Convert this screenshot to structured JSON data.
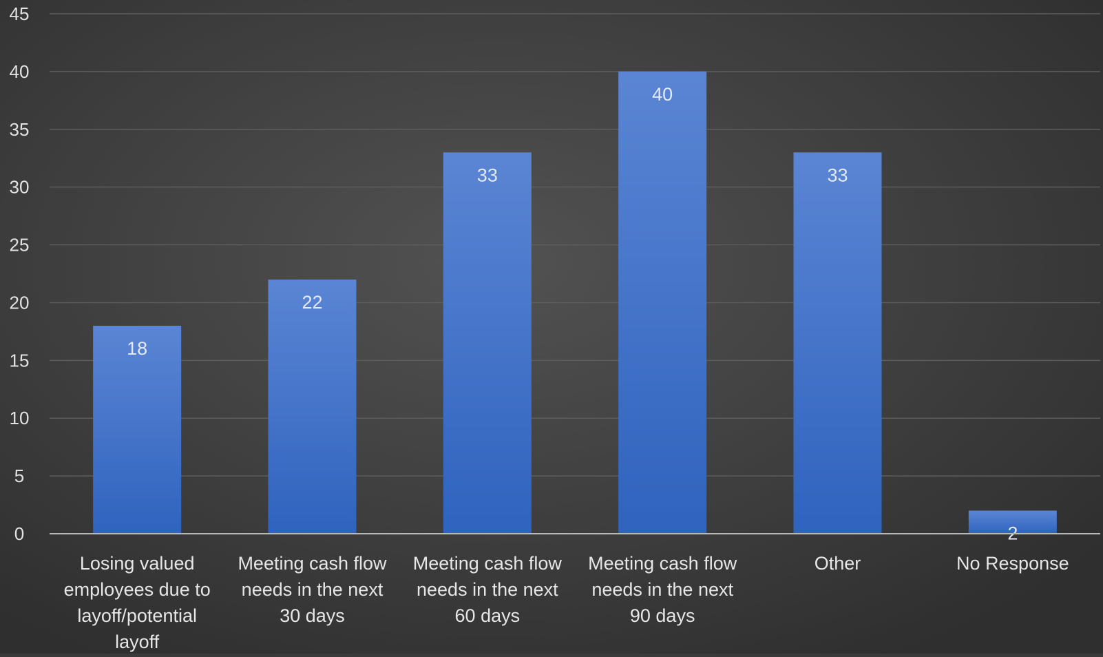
{
  "chart_data": {
    "type": "bar",
    "categories": [
      [
        "Losing valued",
        "employees due to",
        "layoff/potential",
        "layoff"
      ],
      [
        "Meeting cash flow",
        "needs in the next",
        "30 days"
      ],
      [
        "Meeting cash flow",
        "needs in the next",
        "60 days"
      ],
      [
        "Meeting cash flow",
        "needs in the next",
        "90 days"
      ],
      [
        "Other"
      ],
      [
        "No Response"
      ]
    ],
    "values": [
      18,
      22,
      33,
      40,
      33,
      2
    ],
    "data_labels": [
      "18",
      "22",
      "33",
      "40",
      "33",
      "2"
    ],
    "ylim": [
      0,
      45
    ],
    "yticks": [
      0,
      5,
      10,
      15,
      20,
      25,
      30,
      35,
      40,
      45
    ],
    "title": "",
    "xlabel": "",
    "ylabel": "",
    "grid": true,
    "legend": "none",
    "colors": {
      "bar_top": "#5b85d4",
      "bar_bottom": "#2f63be",
      "text": "#e2e2e2",
      "data_label": "#e3e9f6"
    }
  }
}
